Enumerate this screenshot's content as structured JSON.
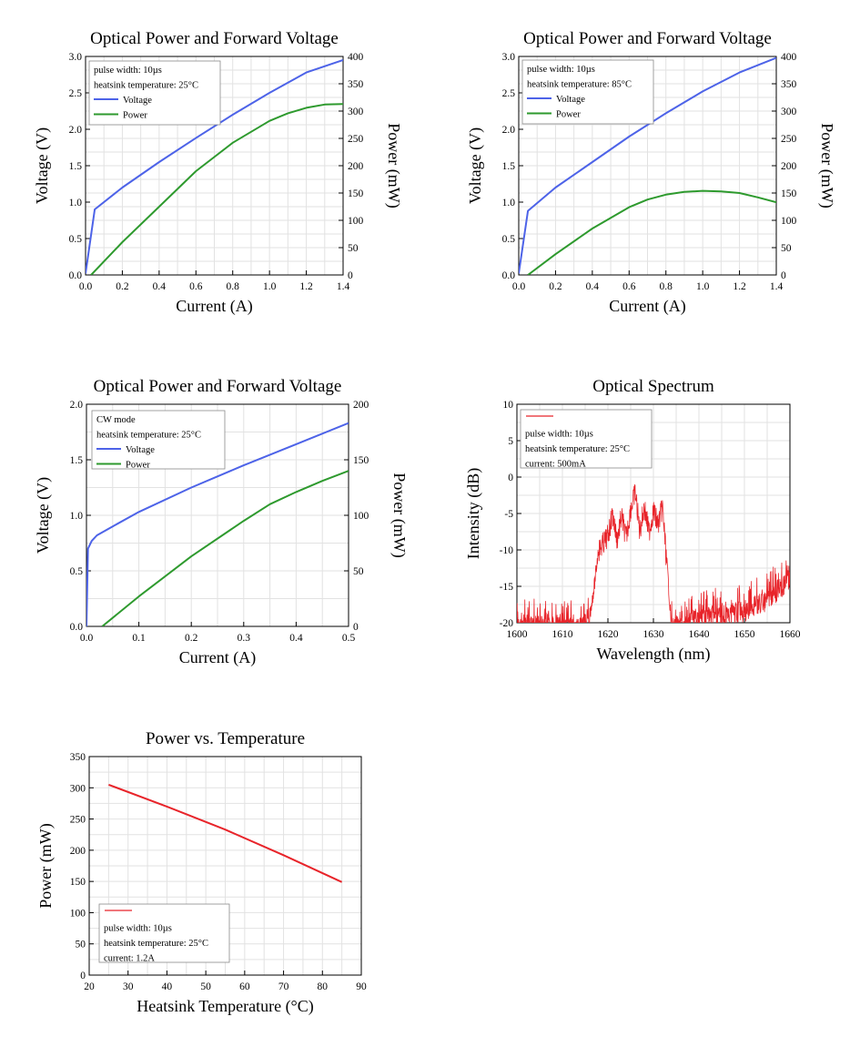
{
  "chart_data": [
    {
      "type": "line",
      "title": "Optical Power and Forward Voltage",
      "xlabel": "Current (A)",
      "ylabel": "Voltage (V)",
      "y2label": "Power (mW)",
      "xlim": [
        0,
        1.4
      ],
      "ylim": [
        0,
        3.0
      ],
      "y2lim": [
        0,
        400
      ],
      "xticks": [
        "0.0",
        "0.2",
        "0.4",
        "0.6",
        "0.8",
        "1.0",
        "1.2",
        "1.4"
      ],
      "yticks": [
        "0.0",
        "0.5",
        "1.0",
        "1.5",
        "2.0",
        "2.5",
        "3.0"
      ],
      "y2ticks": [
        "0",
        "50",
        "100",
        "150",
        "200",
        "250",
        "300",
        "350",
        "400"
      ],
      "grid": true,
      "legend": {
        "position": "top-left",
        "notes": [
          "pulse width: 10µs",
          "heatsink temperature: 25°C"
        ],
        "entries": [
          "Voltage",
          "Power"
        ]
      },
      "series": [
        {
          "name": "Voltage",
          "axis": "left",
          "color": "#4d63e8",
          "x": [
            0.0,
            0.05,
            0.2,
            0.4,
            0.6,
            0.8,
            1.0,
            1.2,
            1.4
          ],
          "y": [
            0.02,
            0.9,
            1.2,
            1.55,
            1.88,
            2.2,
            2.5,
            2.78,
            2.95
          ]
        },
        {
          "name": "Power",
          "axis": "right",
          "color": "#2e9a2e",
          "x": [
            0.03,
            0.2,
            0.4,
            0.6,
            0.8,
            1.0,
            1.1,
            1.2,
            1.3,
            1.4
          ],
          "y": [
            0,
            60,
            125,
            190,
            242,
            282,
            296,
            306,
            312,
            313
          ]
        }
      ]
    },
    {
      "type": "line",
      "title": "Optical Power and Forward Voltage",
      "xlabel": "Current (A)",
      "ylabel": "Voltage (V)",
      "y2label": "Power (mW)",
      "xlim": [
        0,
        1.4
      ],
      "ylim": [
        0,
        3.0
      ],
      "y2lim": [
        0,
        400
      ],
      "xticks": [
        "0.0",
        "0.2",
        "0.4",
        "0.6",
        "0.8",
        "1.0",
        "1.2",
        "1.4"
      ],
      "yticks": [
        "0.0",
        "0.5",
        "1.0",
        "1.5",
        "2.0",
        "2.5",
        "3.0"
      ],
      "y2ticks": [
        "0",
        "50",
        "100",
        "150",
        "200",
        "250",
        "300",
        "350",
        "400"
      ],
      "grid": true,
      "legend": {
        "position": "top-left",
        "notes": [
          "pulse width: 10µs",
          "heatsink temperature: 85°C"
        ],
        "entries": [
          "Voltage",
          "Power"
        ]
      },
      "series": [
        {
          "name": "Voltage",
          "axis": "left",
          "color": "#4d63e8",
          "x": [
            0.0,
            0.05,
            0.2,
            0.4,
            0.6,
            0.8,
            1.0,
            1.2,
            1.4
          ],
          "y": [
            0.02,
            0.88,
            1.2,
            1.55,
            1.9,
            2.22,
            2.52,
            2.78,
            2.98
          ]
        },
        {
          "name": "Power",
          "axis": "right",
          "color": "#2e9a2e",
          "x": [
            0.05,
            0.2,
            0.4,
            0.6,
            0.7,
            0.8,
            0.9,
            1.0,
            1.1,
            1.2,
            1.3,
            1.4
          ],
          "y": [
            0,
            38,
            85,
            124,
            138,
            147,
            152,
            154,
            153,
            150,
            142,
            133
          ]
        }
      ]
    },
    {
      "type": "line",
      "title": "Optical Power and Forward Voltage",
      "xlabel": "Current (A)",
      "ylabel": "Voltage (V)",
      "y2label": "Power (mW)",
      "xlim": [
        0,
        0.5
      ],
      "ylim": [
        0,
        2.0
      ],
      "y2lim": [
        0,
        200
      ],
      "xticks": [
        "0.0",
        "0.1",
        "0.2",
        "0.3",
        "0.4",
        "0.5"
      ],
      "yticks": [
        "0.0",
        "0.5",
        "1.0",
        "1.5",
        "2.0"
      ],
      "y2ticks": [
        "0",
        "50",
        "100",
        "150",
        "200"
      ],
      "grid": true,
      "legend": {
        "position": "top-left",
        "notes": [
          "CW mode",
          "heatsink temperature: 25°C"
        ],
        "entries": [
          "Voltage",
          "Power"
        ]
      },
      "series": [
        {
          "name": "Voltage",
          "axis": "left",
          "color": "#4d63e8",
          "x": [
            0.0,
            0.003,
            0.01,
            0.02,
            0.05,
            0.1,
            0.2,
            0.3,
            0.4,
            0.5
          ],
          "y": [
            0.0,
            0.7,
            0.77,
            0.82,
            0.9,
            1.03,
            1.25,
            1.45,
            1.64,
            1.83
          ]
        },
        {
          "name": "Power",
          "axis": "right",
          "color": "#2e9a2e",
          "x": [
            0.03,
            0.1,
            0.2,
            0.3,
            0.35,
            0.4,
            0.45,
            0.5
          ],
          "y": [
            0,
            27,
            63,
            95,
            110,
            121,
            131,
            140
          ]
        }
      ]
    },
    {
      "type": "line",
      "title": "Optical Spectrum",
      "xlabel": "Wavelength (nm)",
      "ylabel": "Intensity (dB)",
      "xlim": [
        1600,
        1660
      ],
      "ylim": [
        -20,
        10
      ],
      "xticks": [
        "1600",
        "1610",
        "1620",
        "1630",
        "1640",
        "1650",
        "1660"
      ],
      "yticks": [
        "-20",
        "-15",
        "-10",
        "-5",
        "0",
        "5",
        "10"
      ],
      "grid": true,
      "legend": {
        "position": "top-left",
        "notes": [
          "pulse width: 10µs",
          "heatsink temperature: 25°C",
          "current: 500mA"
        ]
      },
      "series": [
        {
          "color": "#e8242a",
          "x": [
            1600,
            1605,
            1610,
            1614,
            1616,
            1617,
            1618,
            1620,
            1621,
            1622,
            1623,
            1624,
            1625,
            1626,
            1627,
            1628,
            1629,
            1630,
            1631,
            1632,
            1633,
            1634,
            1636,
            1640,
            1645,
            1650,
            1655,
            1660
          ],
          "y": [
            -20,
            -19.5,
            -19.8,
            -20,
            -18,
            -14,
            -8.5,
            -6.5,
            -3.5,
            -7,
            -3.8,
            -6.8,
            -2.8,
            -0.5,
            -5.8,
            -2.5,
            -6,
            -3,
            -5,
            -2.5,
            -11,
            -20,
            -19,
            -18.5,
            -18,
            -17.5,
            -16,
            -13
          ]
        }
      ]
    },
    {
      "type": "line",
      "title": "Power vs. Temperature",
      "xlabel": "Heatsink Temperature (°C)",
      "ylabel": "Power (mW)",
      "xlim": [
        20,
        90
      ],
      "ylim": [
        0,
        350
      ],
      "xticks": [
        "20",
        "30",
        "40",
        "50",
        "60",
        "70",
        "80",
        "90"
      ],
      "yticks": [
        "0",
        "50",
        "100",
        "150",
        "200",
        "250",
        "300",
        "350"
      ],
      "grid": true,
      "legend": {
        "position": "bottom-left",
        "notes": [
          "pulse width: 10µs",
          "heatsink temperature: 25°C",
          "current: 1.2A"
        ]
      },
      "series": [
        {
          "color": "#e8242a",
          "x": [
            25,
            40,
            55,
            70,
            85
          ],
          "y": [
            305,
            270,
            233,
            192,
            149
          ]
        }
      ]
    }
  ]
}
